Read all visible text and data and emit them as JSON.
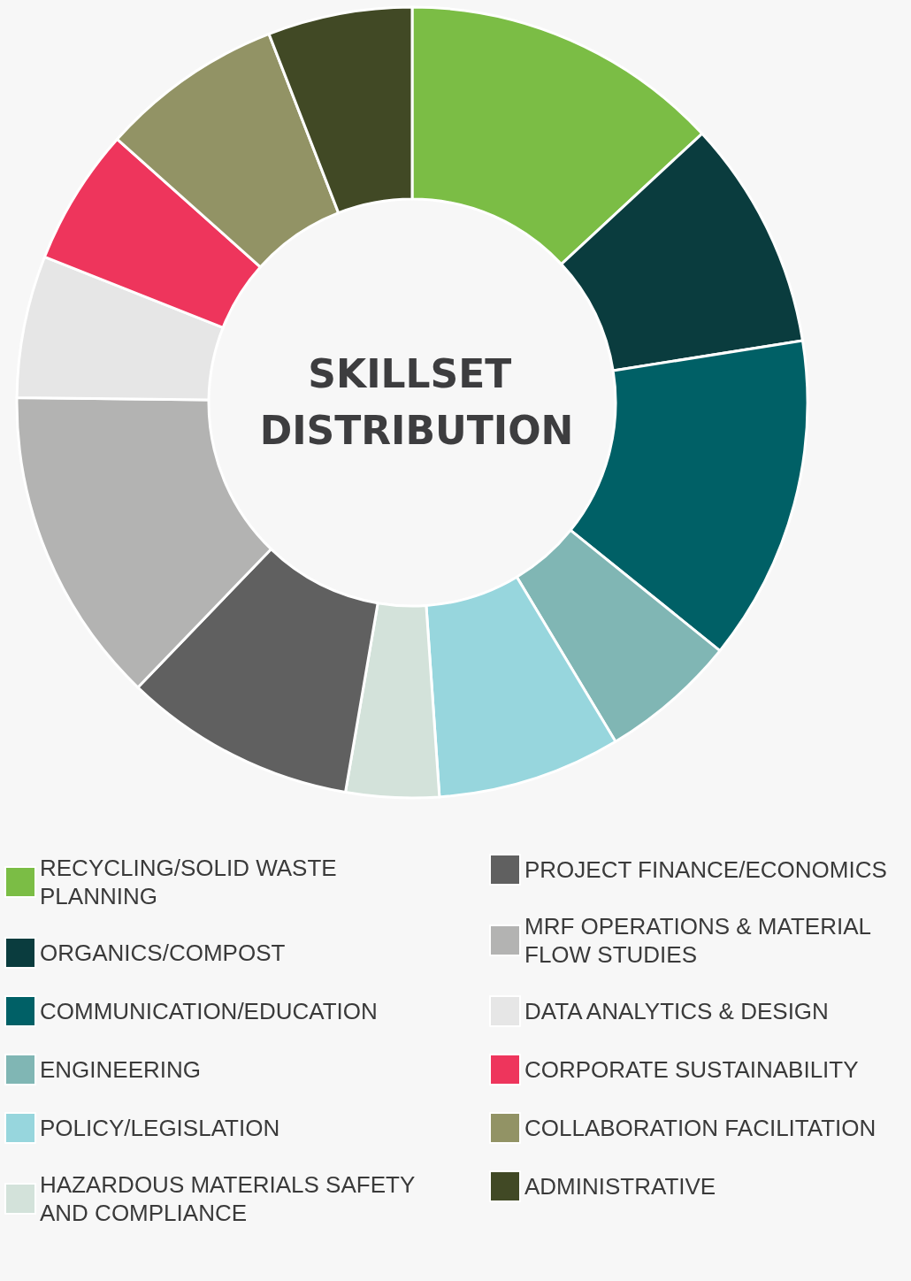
{
  "chart_data": {
    "type": "donut",
    "title": "SKILLSET DISTRIBUTION",
    "categories": [
      "RECYCLING/SOLID WASTE PLANNING",
      "ORGANICS/COMPOST",
      "COMMUNICATION/EDUCATION",
      "ENGINEERING",
      "POLICY/LEGISLATION",
      "HAZARDOUS MATERIALS SAFETY AND COMPLIANCE",
      "PROJECT FINANCE/ECONOMICS",
      "MRF OPERATIONS & MATERIAL FLOW STUDIES",
      "DATA ANALYTICS & DESIGN",
      "CORPORATE SUSTAINABILITY",
      "COLLABORATION FACILITATION",
      "ADMINISTRATIVE"
    ],
    "values": [
      13.1,
      9.4,
      13.3,
      5.6,
      7.5,
      3.8,
      9.5,
      13.0,
      5.8,
      5.6,
      7.5,
      5.9
    ],
    "colors": [
      "#7bbd45",
      "#0a3c3e",
      "#006066",
      "#80b6b4",
      "#97d6dd",
      "#d3e2da",
      "#606060",
      "#b3b3b2",
      "#e6e6e6",
      "#ee355c",
      "#929365",
      "#414925"
    ],
    "legend": "bottom"
  }
}
